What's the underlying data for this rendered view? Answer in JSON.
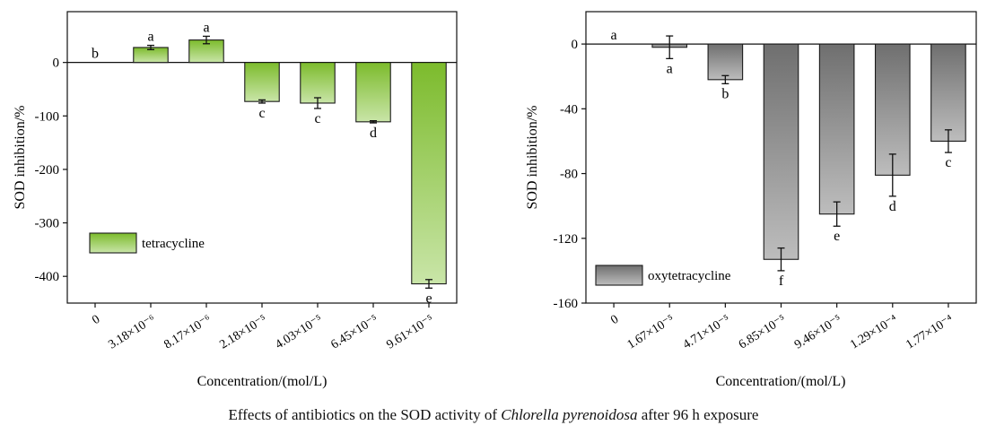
{
  "caption": {
    "before": "Effects of antibiotics on the SOD activity of ",
    "species": "Chlorella pyrenoidosa",
    "after": " after 96 h exposure"
  },
  "chart_data": [
    {
      "type": "bar",
      "ylabel": "SOD inhibition/%",
      "xlabel": "Concentration/(mol/L)",
      "ylim": [
        -450,
        95
      ],
      "yticks": [
        0,
        -100,
        -200,
        -300,
        -400
      ],
      "ytick_labels": [
        "0",
        "-100",
        "-200",
        "-300",
        "-400"
      ],
      "categories": [
        "0",
        "3.18×10⁻⁶",
        "8.17×10⁻⁶",
        "2.18×10⁻⁵",
        "4.03×10⁻⁵",
        "6.45×10⁻⁵",
        "9.61×10⁻⁵"
      ],
      "series": [
        {
          "name": "tetracycline",
          "values": [
            0,
            28,
            42,
            -73,
            -76,
            -111,
            -414
          ],
          "errors": [
            0,
            4,
            7,
            3,
            10,
            2,
            8
          ],
          "letters": [
            "b",
            "a",
            "a",
            "c",
            "c",
            "d",
            "e"
          ]
        }
      ],
      "legend": "lower-left",
      "colors": {
        "bar_top": "#7cbb2c",
        "bar_bottom": "#c9e5a8",
        "edge": "#1a1a1a"
      }
    },
    {
      "type": "bar",
      "ylabel": "SOD inhibition/%",
      "xlabel": "Concentration/(mol/L)",
      "ylim": [
        -160,
        20
      ],
      "yticks": [
        0,
        -40,
        -80,
        -120,
        -160
      ],
      "ytick_labels": [
        "0",
        "-40",
        "-80",
        "-120",
        "-160"
      ],
      "categories": [
        "0",
        "1.67×10⁻⁵",
        "4.71×10⁻⁵",
        "6.85×10⁻⁵",
        "9.46×10⁻⁵",
        "1.29×10⁻⁴",
        "1.77×10⁻⁴"
      ],
      "series": [
        {
          "name": "oxytetracycline",
          "values": [
            0,
            -2,
            -22,
            -133,
            -105,
            -81,
            -60
          ],
          "errors": [
            0,
            7,
            2.5,
            7,
            7.5,
            13,
            7
          ],
          "letters": [
            "a",
            "a",
            "b",
            "f",
            "e",
            "d",
            "c"
          ]
        }
      ],
      "legend": "lower-left",
      "colors": {
        "bar_top": "#6f6f6f",
        "bar_bottom": "#bdbdbd",
        "edge": "#1a1a1a"
      }
    }
  ]
}
